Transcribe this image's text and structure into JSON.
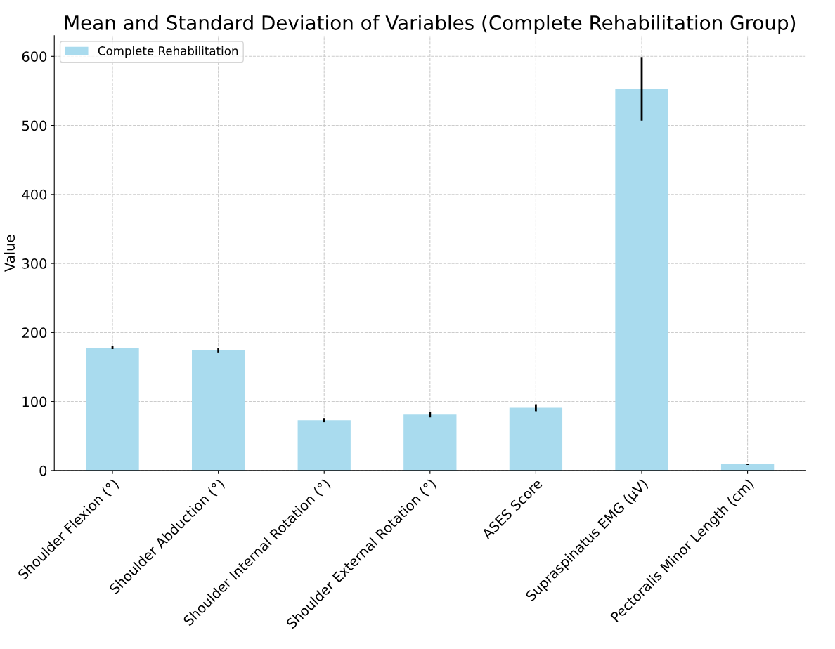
{
  "chart_data": {
    "type": "bar",
    "title": "Mean and Standard Deviation of Variables (Complete Rehabilitation Group)",
    "ylabel": "Value",
    "categories": [
      "Shoulder Flexion (°)",
      "Shoulder Abduction (°)",
      "Shoulder Internal Rotation (°)",
      "Shoulder External Rotation (°)",
      "ASES Score",
      "Supraspinatus EMG (µV)",
      "Pectoralis Minor Length (cm)"
    ],
    "series": [
      {
        "name": "Complete Rehabilitation",
        "color": "#a9dbee",
        "values": [
          178,
          174,
          73,
          81,
          91,
          553,
          9
        ],
        "errors": [
          2,
          3,
          3,
          4,
          5,
          46,
          1
        ]
      }
    ],
    "ylim": [
      0,
      630
    ],
    "yticks": [
      0,
      100,
      200,
      300,
      400,
      500,
      600
    ],
    "grid": true,
    "legend": "top left"
  }
}
